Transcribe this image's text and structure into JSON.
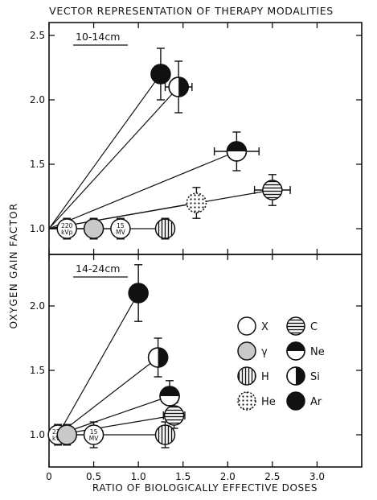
{
  "title": "VECTOR REPRESENTATION OF THERAPY MODALITIES",
  "xlabel": "RATIO OF BIOLOGICALLY EFFECTIVE DOSES",
  "ylabel": "OXYGEN GAIN FACTOR",
  "legend": [
    {
      "symbol": "open",
      "label": "X"
    },
    {
      "symbol": "gray",
      "label": "γ"
    },
    {
      "symbol": "vlines",
      "label": "H"
    },
    {
      "symbol": "dots",
      "label": "He"
    },
    {
      "symbol": "hlines",
      "label": "C"
    },
    {
      "symbol": "tophalf",
      "label": "Ne"
    },
    {
      "symbol": "righthalf",
      "label": "Si"
    },
    {
      "symbol": "filled",
      "label": "Ar"
    }
  ],
  "chart_data": [
    {
      "type": "scatter",
      "panel": "top",
      "panel_label": "10-14cm",
      "xlim": [
        0,
        3.5
      ],
      "ylim": [
        0.8,
        2.6
      ],
      "xticks": [
        "0",
        "0.5",
        "1.0",
        "1.5",
        "2.0",
        "2.5",
        "3.0"
      ],
      "yticks": [
        "1.0",
        "1.5",
        "2.0",
        "2.5"
      ],
      "origin": {
        "x": 0,
        "y": 1.0
      },
      "points": [
        {
          "type": "X",
          "x": 0.2,
          "y": 1.0,
          "label": "220 kVp",
          "symbol": "open",
          "xerr": 0,
          "yerr": 0.08
        },
        {
          "type": "γ",
          "x": 0.5,
          "y": 1.0,
          "label": "",
          "symbol": "gray",
          "xerr": 0,
          "yerr": 0.08
        },
        {
          "type": "X",
          "x": 0.8,
          "y": 1.0,
          "label": "15 MV",
          "symbol": "open",
          "xerr": 0,
          "yerr": 0.08
        },
        {
          "type": "H",
          "x": 1.3,
          "y": 1.0,
          "label": "",
          "symbol": "vlines",
          "xerr": 0.05,
          "yerr": 0.08
        },
        {
          "type": "He",
          "x": 1.65,
          "y": 1.2,
          "label": "",
          "symbol": "dots",
          "xerr": 0.08,
          "yerr": 0.12
        },
        {
          "type": "C",
          "x": 2.5,
          "y": 1.3,
          "label": "",
          "symbol": "hlines",
          "xerr": 0.2,
          "yerr": 0.12
        },
        {
          "type": "Ne",
          "x": 2.1,
          "y": 1.6,
          "label": "",
          "symbol": "tophalf",
          "xerr": 0.25,
          "yerr": 0.15
        },
        {
          "type": "Ar",
          "x": 1.25,
          "y": 2.2,
          "label": "",
          "symbol": "filled",
          "xerr": 0.07,
          "yerr": 0.2
        },
        {
          "type": "Si",
          "x": 1.45,
          "y": 2.1,
          "label": "",
          "symbol": "righthalf",
          "xerr": 0.15,
          "yerr": 0.2
        }
      ]
    },
    {
      "type": "scatter",
      "panel": "bottom",
      "panel_label": "14-24cm",
      "xlim": [
        0,
        3.5
      ],
      "ylim": [
        0.75,
        2.4
      ],
      "xticks": [
        "0",
        "0.5",
        "1.0",
        "1.5",
        "2.0",
        "2.5",
        "3.0"
      ],
      "yticks": [
        "1.0",
        "1.5",
        "2.0"
      ],
      "origin": {
        "x": 0.1,
        "y": 1.0
      },
      "points": [
        {
          "type": "X",
          "x": 0.1,
          "y": 1.0,
          "label": "220 kVp",
          "symbol": "open",
          "xerr": 0.05,
          "yerr": 0.08
        },
        {
          "type": "γ",
          "x": 0.2,
          "y": 1.0,
          "label": "",
          "symbol": "gray",
          "xerr": 0.05,
          "yerr": 0.08
        },
        {
          "type": "X",
          "x": 0.5,
          "y": 1.0,
          "label": "15 MV",
          "symbol": "open",
          "xerr": 0.1,
          "yerr": 0.1
        },
        {
          "type": "H",
          "x": 1.3,
          "y": 1.0,
          "label": "",
          "symbol": "vlines",
          "xerr": 0.1,
          "yerr": 0.1
        },
        {
          "type": "C",
          "x": 1.4,
          "y": 1.15,
          "label": "",
          "symbol": "hlines",
          "xerr": 0.12,
          "yerr": 0.1
        },
        {
          "type": "Ne",
          "x": 1.35,
          "y": 1.3,
          "label": "",
          "symbol": "tophalf",
          "xerr": 0.1,
          "yerr": 0.12
        },
        {
          "type": "Si",
          "x": 1.22,
          "y": 1.6,
          "label": "",
          "symbol": "righthalf",
          "xerr": 0.1,
          "yerr": 0.15
        },
        {
          "type": "Ar",
          "x": 1.0,
          "y": 2.1,
          "label": "",
          "symbol": "filled",
          "xerr": 0.0,
          "yerr": 0.22
        }
      ]
    }
  ]
}
